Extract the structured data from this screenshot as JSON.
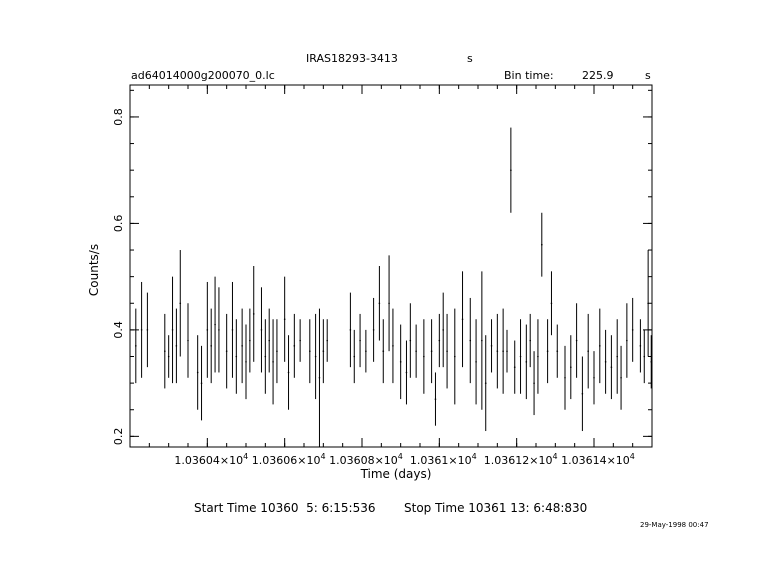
{
  "header": {
    "object": "IRAS18293-3413",
    "object_suffix": "s",
    "filename": "ad64014000g200070_0.lc",
    "bin_time_label": "Bin time:",
    "bin_time_value": "225.9",
    "bin_time_unit": "s"
  },
  "footer": {
    "start_time": "Start Time 10360  5: 6:15:536",
    "stop_time": "Stop Time 10361 13: 6:48:830",
    "date_stamp": "29-May-1998 00:47"
  },
  "chart_data": {
    "type": "scatter",
    "xlabel": "Time (days)",
    "ylabel": "Counts/s",
    "xlim": [
      10360.2,
      10361.55
    ],
    "ylim": [
      0.18,
      0.86
    ],
    "x_ticks": [
      {
        "value": 10360.4,
        "mantissa": "1.03604×10",
        "exp": "4"
      },
      {
        "value": 10360.6,
        "mantissa": "1.03606×10",
        "exp": "4"
      },
      {
        "value": 10360.8,
        "mantissa": "1.03608×10",
        "exp": "4"
      },
      {
        "value": 10361.0,
        "mantissa": "1.0361×10",
        "exp": "4"
      },
      {
        "value": 10361.2,
        "mantissa": "1.03612×10",
        "exp": "4"
      },
      {
        "value": 10361.4,
        "mantissa": "1.03614×10",
        "exp": "4"
      }
    ],
    "y_ticks": [
      0.2,
      0.4,
      0.6,
      0.8
    ],
    "grid": false,
    "points": [
      [
        10360.215,
        0.37,
        0.07
      ],
      [
        10360.23,
        0.4,
        0.09
      ],
      [
        10360.245,
        0.4,
        0.07
      ],
      [
        10360.29,
        0.36,
        0.07
      ],
      [
        10360.3,
        0.35,
        0.04
      ],
      [
        10360.31,
        0.4,
        0.1
      ],
      [
        10360.32,
        0.37,
        0.07
      ],
      [
        10360.33,
        0.45,
        0.1
      ],
      [
        10360.35,
        0.38,
        0.07
      ],
      [
        10360.375,
        0.32,
        0.07
      ],
      [
        10360.385,
        0.3,
        0.07
      ],
      [
        10360.4,
        0.4,
        0.09
      ],
      [
        10360.41,
        0.37,
        0.07
      ],
      [
        10360.42,
        0.41,
        0.09
      ],
      [
        10360.43,
        0.4,
        0.08
      ],
      [
        10360.45,
        0.36,
        0.07
      ],
      [
        10360.465,
        0.4,
        0.09
      ],
      [
        10360.475,
        0.35,
        0.07
      ],
      [
        10360.49,
        0.37,
        0.07
      ],
      [
        10360.5,
        0.34,
        0.07
      ],
      [
        10360.51,
        0.38,
        0.06
      ],
      [
        10360.52,
        0.43,
        0.09
      ],
      [
        10360.54,
        0.4,
        0.08
      ],
      [
        10360.55,
        0.35,
        0.07
      ],
      [
        10360.56,
        0.38,
        0.06
      ],
      [
        10360.57,
        0.34,
        0.08
      ],
      [
        10360.58,
        0.36,
        0.06
      ],
      [
        10360.6,
        0.42,
        0.08
      ],
      [
        10360.61,
        0.32,
        0.07
      ],
      [
        10360.625,
        0.37,
        0.06
      ],
      [
        10360.64,
        0.38,
        0.04
      ],
      [
        10360.665,
        0.36,
        0.06
      ],
      [
        10360.68,
        0.35,
        0.08
      ],
      [
        10360.69,
        0.31,
        0.13
      ],
      [
        10360.7,
        0.36,
        0.06
      ],
      [
        10360.71,
        0.38,
        0.04
      ],
      [
        10360.77,
        0.4,
        0.07
      ],
      [
        10360.78,
        0.35,
        0.05
      ],
      [
        10360.795,
        0.38,
        0.05
      ],
      [
        10360.81,
        0.36,
        0.04
      ],
      [
        10360.83,
        0.4,
        0.06
      ],
      [
        10360.845,
        0.45,
        0.07
      ],
      [
        10360.855,
        0.36,
        0.06
      ],
      [
        10360.87,
        0.45,
        0.09
      ],
      [
        10360.88,
        0.37,
        0.07
      ],
      [
        10360.9,
        0.34,
        0.07
      ],
      [
        10360.915,
        0.32,
        0.06
      ],
      [
        10360.925,
        0.38,
        0.07
      ],
      [
        10360.94,
        0.36,
        0.05
      ],
      [
        10360.96,
        0.35,
        0.07
      ],
      [
        10360.98,
        0.36,
        0.06
      ],
      [
        10360.99,
        0.27,
        0.05
      ],
      [
        10361.0,
        0.38,
        0.05
      ],
      [
        10361.01,
        0.4,
        0.07
      ],
      [
        10361.02,
        0.36,
        0.07
      ],
      [
        10361.04,
        0.35,
        0.09
      ],
      [
        10361.06,
        0.42,
        0.09
      ],
      [
        10361.08,
        0.38,
        0.08
      ],
      [
        10361.095,
        0.34,
        0.08
      ],
      [
        10361.11,
        0.38,
        0.13
      ],
      [
        10361.12,
        0.3,
        0.09
      ],
      [
        10361.135,
        0.37,
        0.05
      ],
      [
        10361.15,
        0.36,
        0.07
      ],
      [
        10361.165,
        0.36,
        0.08
      ],
      [
        10361.175,
        0.36,
        0.04
      ],
      [
        10361.185,
        0.7,
        0.08
      ],
      [
        10361.195,
        0.33,
        0.05
      ],
      [
        10361.21,
        0.35,
        0.07
      ],
      [
        10361.225,
        0.34,
        0.07
      ],
      [
        10361.235,
        0.38,
        0.05
      ],
      [
        10361.245,
        0.3,
        0.06
      ],
      [
        10361.255,
        0.35,
        0.07
      ],
      [
        10361.265,
        0.56,
        0.06
      ],
      [
        10361.28,
        0.36,
        0.06
      ],
      [
        10361.29,
        0.45,
        0.06
      ],
      [
        10361.305,
        0.36,
        0.05
      ],
      [
        10361.325,
        0.31,
        0.06
      ],
      [
        10361.34,
        0.33,
        0.06
      ],
      [
        10361.355,
        0.38,
        0.07
      ],
      [
        10361.37,
        0.28,
        0.07
      ],
      [
        10361.385,
        0.36,
        0.07
      ],
      [
        10361.4,
        0.31,
        0.05
      ],
      [
        10361.415,
        0.37,
        0.07
      ],
      [
        10361.43,
        0.34,
        0.06
      ],
      [
        10361.445,
        0.33,
        0.06
      ],
      [
        10361.46,
        0.35,
        0.07
      ],
      [
        10361.47,
        0.31,
        0.06
      ],
      [
        10361.485,
        0.38,
        0.07
      ],
      [
        10361.5,
        0.4,
        0.06
      ],
      [
        10361.52,
        0.37,
        0.05
      ],
      [
        10361.53,
        0.35,
        0.05
      ],
      [
        10361.54,
        0.45,
        0.1
      ],
      [
        10361.548,
        0.34,
        0.05
      ]
    ]
  }
}
